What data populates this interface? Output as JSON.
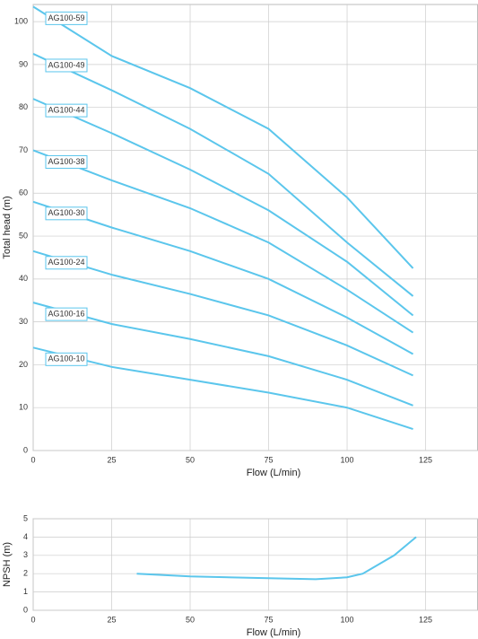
{
  "chart_data": [
    {
      "type": "line",
      "ylabel": "Total head (m)",
      "xlabel": "Flow (L/min)",
      "x": [
        0,
        25,
        50,
        75,
        100,
        121
      ],
      "xlim": [
        0,
        141.7
      ],
      "xticks": [
        0,
        25,
        50,
        75,
        100,
        125
      ],
      "ylim": [
        0,
        104
      ],
      "yticks": [
        0,
        10,
        20,
        30,
        40,
        50,
        60,
        70,
        80,
        90,
        100
      ],
      "grid": true,
      "series": [
        {
          "name": "AG100-59",
          "color": "#5bc6ec",
          "values": [
            103.5,
            92,
            84.5,
            75,
            59,
            42.5
          ]
        },
        {
          "name": "AG100-49",
          "color": "#5bc6ec",
          "values": [
            92.5,
            84,
            75,
            64.5,
            48.5,
            36
          ]
        },
        {
          "name": "AG100-44",
          "color": "#5bc6ec",
          "values": [
            82,
            74,
            65.5,
            56,
            44,
            31.5
          ]
        },
        {
          "name": "AG100-38",
          "color": "#5bc6ec",
          "values": [
            70,
            63,
            56.5,
            48.5,
            37.5,
            27.5
          ]
        },
        {
          "name": "AG100-30",
          "color": "#5bc6ec",
          "values": [
            58,
            52,
            46.5,
            40,
            31,
            22.5
          ]
        },
        {
          "name": "AG100-24",
          "color": "#5bc6ec",
          "values": [
            46.5,
            41,
            36.5,
            31.5,
            24.5,
            17.5
          ]
        },
        {
          "name": "AG100-16",
          "color": "#5bc6ec",
          "values": [
            34.5,
            29.5,
            26,
            22,
            16.5,
            10.5
          ]
        },
        {
          "name": "AG100-10",
          "color": "#5bc6ec",
          "values": [
            24,
            19.5,
            16.5,
            13.5,
            10,
            5
          ]
        }
      ]
    },
    {
      "type": "line",
      "ylabel": "NPSH (m)",
      "xlabel": "Flow (L/min)",
      "x": [
        33,
        50,
        75,
        90,
        100,
        105,
        110,
        115,
        122
      ],
      "xlim": [
        0,
        141.7
      ],
      "xticks": [
        0,
        25,
        50,
        75,
        100,
        125
      ],
      "ylim": [
        0,
        5
      ],
      "yticks": [
        0,
        1,
        2,
        3,
        4,
        5
      ],
      "grid": true,
      "series": [
        {
          "color": "#5bc6ec",
          "values": [
            2.0,
            1.85,
            1.75,
            1.7,
            1.8,
            2.0,
            2.5,
            3.0,
            4.0
          ]
        }
      ]
    }
  ]
}
